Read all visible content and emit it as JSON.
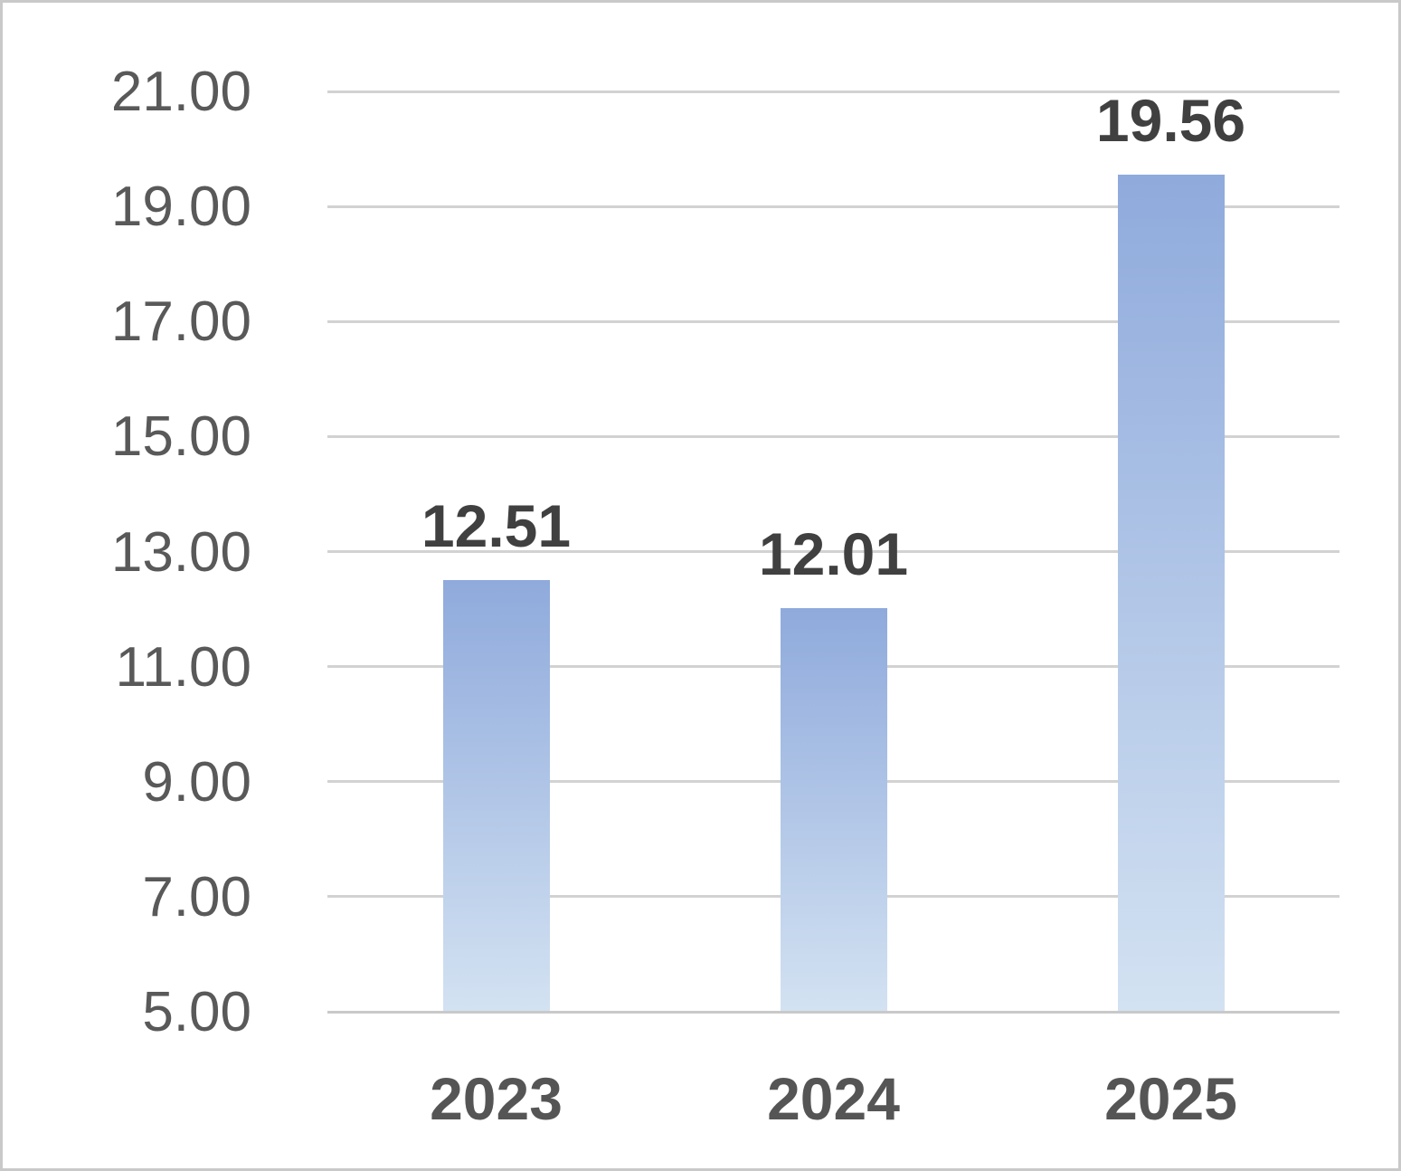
{
  "chart_data": {
    "type": "bar",
    "categories": [
      "2023",
      "2024",
      "2025"
    ],
    "values": [
      12.51,
      12.01,
      19.56
    ],
    "data_labels": [
      "12.51",
      "12.01",
      "19.56"
    ],
    "y_ticks": [
      "21.00",
      "19.00",
      "17.00",
      "15.00",
      "13.00",
      "11.00",
      "9.00",
      "7.00",
      "5.00"
    ],
    "ylim": [
      5,
      21
    ],
    "grid": "on",
    "legend": "none",
    "colors": {
      "bar_gradient_top": "#8FAADC",
      "bar_gradient_bottom": "#D3E2F2",
      "gridline": "#D2D2D2",
      "axis_line": "#C9C9C9",
      "y_tick_label": "#595959",
      "category_label": "#555555",
      "data_label": "#404040",
      "background": "#FFFFFF",
      "frame_border": "#C9C9C9"
    }
  }
}
